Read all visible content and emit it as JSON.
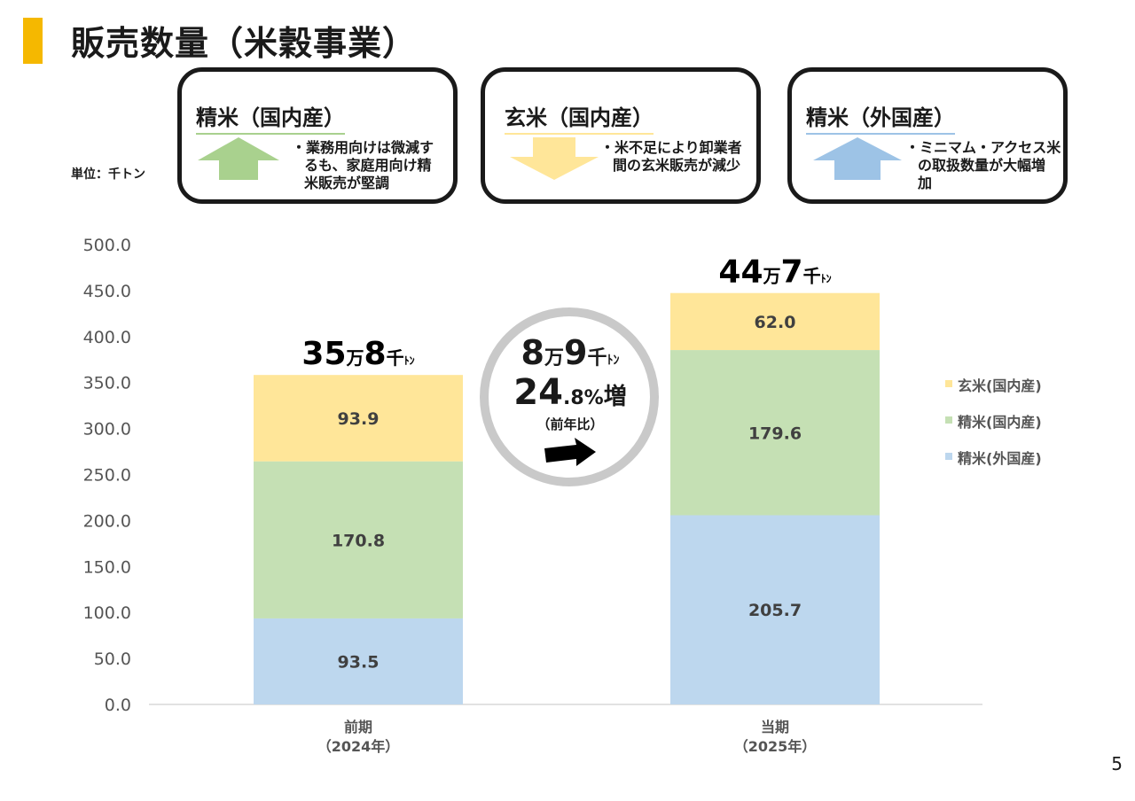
{
  "header": {
    "title": "販売数量（米穀事業）",
    "unit": "単位：千トン"
  },
  "cards": [
    {
      "title": "精米（国内産）",
      "direction": "up",
      "color": "#A9D18E",
      "border": "#A9D18E",
      "lines": [
        "・業務用向けは微減す",
        "るも、家庭用向け精",
        "米販売が堅調"
      ]
    },
    {
      "title": "玄米（国内産）",
      "direction": "down",
      "color": "#FFE699",
      "border": "#FFE699",
      "lines": [
        "・米不足により卸業者",
        "間の玄米販売が減少"
      ]
    },
    {
      "title": "精米（外国産）",
      "direction": "up",
      "color": "#9DC3E6",
      "border": "#9DC3E6",
      "lines": [
        "・ミニマム・アクセス米",
        "の取扱数量が大幅増",
        "加"
      ]
    }
  ],
  "chart_data": {
    "type": "bar",
    "stacked": true,
    "categories": [
      [
        "前期",
        "（2024年）"
      ],
      [
        "当期",
        "（2025年）"
      ]
    ],
    "series": [
      {
        "name": "精米(外国産)",
        "values": [
          93.5,
          205.7
        ],
        "color": "#BDD7EE"
      },
      {
        "name": "精米(国内産)",
        "values": [
          170.8,
          179.6
        ],
        "color": "#C5E0B4"
      },
      {
        "name": "玄米(国内産)",
        "values": [
          93.9,
          62.0
        ],
        "color": "#FFE699"
      }
    ],
    "ylim": [
      0,
      500
    ],
    "yticks": [
      "0.0",
      "50.0",
      "100.0",
      "150.0",
      "200.0",
      "250.0",
      "300.0",
      "350.0",
      "400.0",
      "450.0",
      "500.0"
    ],
    "data_labels": [
      [
        "93.5",
        "170.8",
        "93.9"
      ],
      [
        "205.7",
        "179.6",
        "62.0"
      ]
    ],
    "totals": [
      {
        "big1": "35",
        "small1": "万",
        "big2": "8",
        "small2": "千",
        "tiny": "ﾄﾝ"
      },
      {
        "big1": "44",
        "small1": "万",
        "big2": "7",
        "small2": "千",
        "tiny": "ﾄﾝ"
      }
    ],
    "legend_position": "right",
    "grid": false
  },
  "change_badge": {
    "line1": {
      "big1": "8",
      "small1": "万",
      "big2": "9",
      "small2": "千",
      "tiny": "ﾄﾝ"
    },
    "line2": {
      "big": "24",
      "small": ".8%",
      "suffix": "増"
    },
    "line3": "（前年比）"
  },
  "page_number": "5"
}
